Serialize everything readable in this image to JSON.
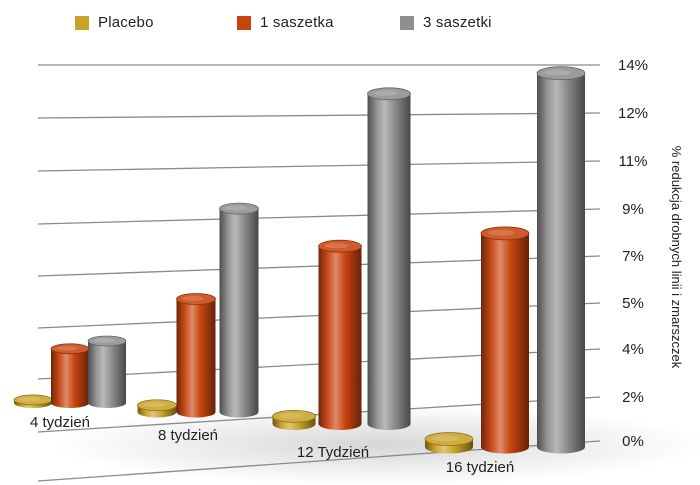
{
  "chart_data": {
    "type": "bar",
    "style": "3d-cylinder",
    "categories": [
      "4 tydzień",
      "8 tydzień",
      "12 Tydzień",
      "16 tydzień"
    ],
    "series": [
      {
        "name": "Placebo",
        "color": "#c9a227",
        "values": [
          0.2,
          0.3,
          0.3,
          0.3
        ]
      },
      {
        "name": "1 saszetka",
        "color": "#c8440f",
        "values": [
          3.5,
          5.0,
          7.0,
          8.0
        ]
      },
      {
        "name": "3 saszetki",
        "color": "#8e8e8e",
        "values": [
          4.0,
          9.0,
          13.0,
          14.0
        ]
      }
    ],
    "y_ticks": [
      "0%",
      "2%",
      "4%",
      "5%",
      "7%",
      "9%",
      "11%",
      "12%",
      "14%"
    ],
    "ylabel": "% redukcja drobnych linii i zmarszczek",
    "ylim": [
      0,
      14
    ],
    "grid": true,
    "legend_position": "top"
  }
}
